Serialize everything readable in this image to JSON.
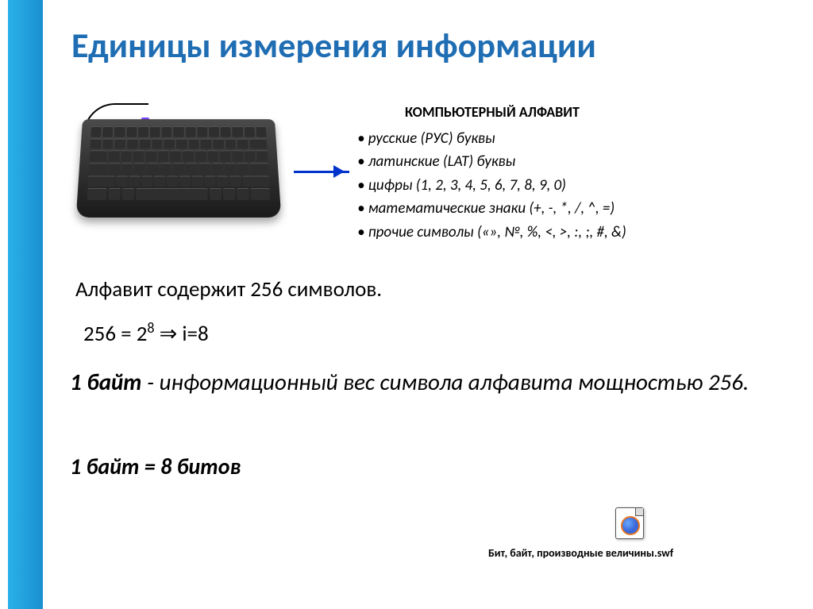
{
  "title": "Единицы измерения информации",
  "alpha_heading": "КОМПЬЮТЕРНЫЙ  АЛФАВИТ",
  "bullets": {
    "b1": "• русские (РУС) буквы",
    "b2": "• латинские (LAT) буквы",
    "b3": "• цифры  (1, 2, 3, 4, 5, 6, 7, 8, 9, 0)",
    "b4": "• математические знаки (+, -, *, /, ^, =)",
    "b5": "• прочие символы («», №, %, <, >, :, ;, #, &)"
  },
  "line_alphabet": "Алфавит содержит 256 символов.",
  "formula_a": "256 = 2",
  "formula_exp": "8",
  "formula_b": " ⇒ i=8",
  "byte_def_pre": "1 байт",
  "byte_def_rest": " - информационный вес символа алфавита мощностью 256.",
  "byte_eq": "1 байт = 8 битов",
  "watermark": "",
  "swf_label": "Бит, байт, производные величины.swf",
  "colors": {
    "title": "#1f6db3",
    "left_bar_from": "#2bb1e9",
    "left_bar_to": "#1a8fd0",
    "arrow": "#0033cc",
    "text": "#000000",
    "background": "#ffffff"
  }
}
